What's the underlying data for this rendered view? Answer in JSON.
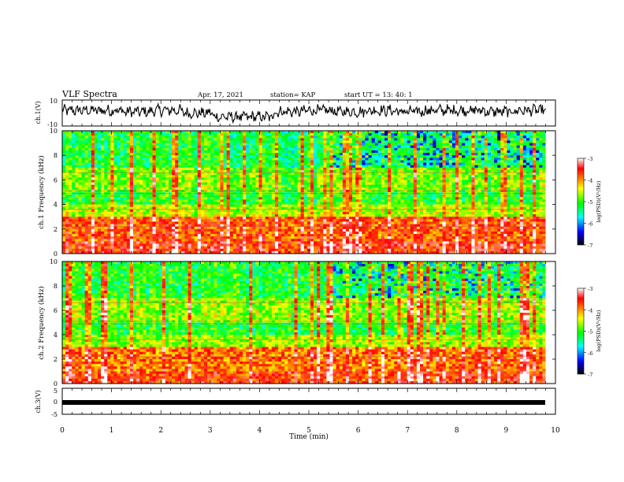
{
  "header": {
    "title": "VLF Spectra",
    "date": "Apr. 17, 2021",
    "station": "station= KAP",
    "start": "start  UT =   13: 40: 1"
  },
  "colorbar": {
    "label": "log(PSD)(V²/Hz)",
    "ticks": [
      "-3",
      "-4",
      "-5",
      "-6",
      "-7"
    ],
    "colors": [
      "#ffffff",
      "#ff0000",
      "#ffff00",
      "#00ff00",
      "#00ffff",
      "#0000ff",
      "#000000"
    ]
  },
  "chart_data": [
    {
      "type": "line",
      "name": "ch1-waveform",
      "ylabel": "ch.1(V)",
      "ylim": [
        -10,
        10
      ],
      "y_tick_labels": [
        "10",
        "-10"
      ],
      "xlim": [
        0,
        10
      ],
      "mean_level": [
        2,
        2,
        1,
        2,
        0,
        -3,
        -3,
        1,
        2,
        1,
        2,
        1,
        2,
        2,
        1,
        2
      ]
    },
    {
      "type": "heatmap",
      "name": "ch1-spectrogram",
      "ylabel": "ch.1 Frequency (kHz)",
      "ylim": [
        0,
        10
      ],
      "y_tick_labels": [
        "0",
        "2",
        "4",
        "6",
        "8",
        "10"
      ],
      "xlim": [
        0,
        9.8
      ],
      "zlim": [
        -7,
        -3
      ],
      "band_means": [
        {
          "freq_khz": [
            0,
            1
          ],
          "log_psd": -3.6
        },
        {
          "freq_khz": [
            1,
            3
          ],
          "log_psd": -3.8
        },
        {
          "freq_khz": [
            3,
            4
          ],
          "log_psd": -4.6
        },
        {
          "freq_khz": [
            4,
            5
          ],
          "log_psd": -5.1
        },
        {
          "freq_khz": [
            5,
            7
          ],
          "log_psd": -4.8
        },
        {
          "freq_khz": [
            7,
            10
          ],
          "log_psd": -5.2
        }
      ]
    },
    {
      "type": "heatmap",
      "name": "ch2-spectrogram",
      "ylabel": "ch.2 Frequency (kHz)",
      "ylim": [
        0,
        10
      ],
      "y_tick_labels": [
        "0",
        "2",
        "4",
        "6",
        "8",
        "10"
      ],
      "xlim": [
        0,
        9.8
      ],
      "zlim": [
        -7,
        -3
      ],
      "band_means": [
        {
          "freq_khz": [
            0,
            1
          ],
          "log_psd": -3.7
        },
        {
          "freq_khz": [
            1,
            3
          ],
          "log_psd": -3.9
        },
        {
          "freq_khz": [
            3,
            4
          ],
          "log_psd": -4.7
        },
        {
          "freq_khz": [
            4,
            5
          ],
          "log_psd": -5.1
        },
        {
          "freq_khz": [
            5,
            7
          ],
          "log_psd": -4.7
        },
        {
          "freq_khz": [
            7,
            10
          ],
          "log_psd": -5.1
        }
      ]
    },
    {
      "type": "line",
      "name": "ch3-waveform",
      "ylabel": "ch.3(V)",
      "ylim": [
        -5,
        5
      ],
      "y_tick_labels": [
        "5",
        "0",
        "-5"
      ],
      "xlim": [
        0,
        10
      ],
      "level": 0
    }
  ],
  "xaxis": {
    "label": "Time (min)",
    "ticks": [
      "0",
      "1",
      "2",
      "3",
      "4",
      "5",
      "6",
      "7",
      "8",
      "9",
      "10"
    ],
    "range": [
      0,
      10
    ]
  }
}
